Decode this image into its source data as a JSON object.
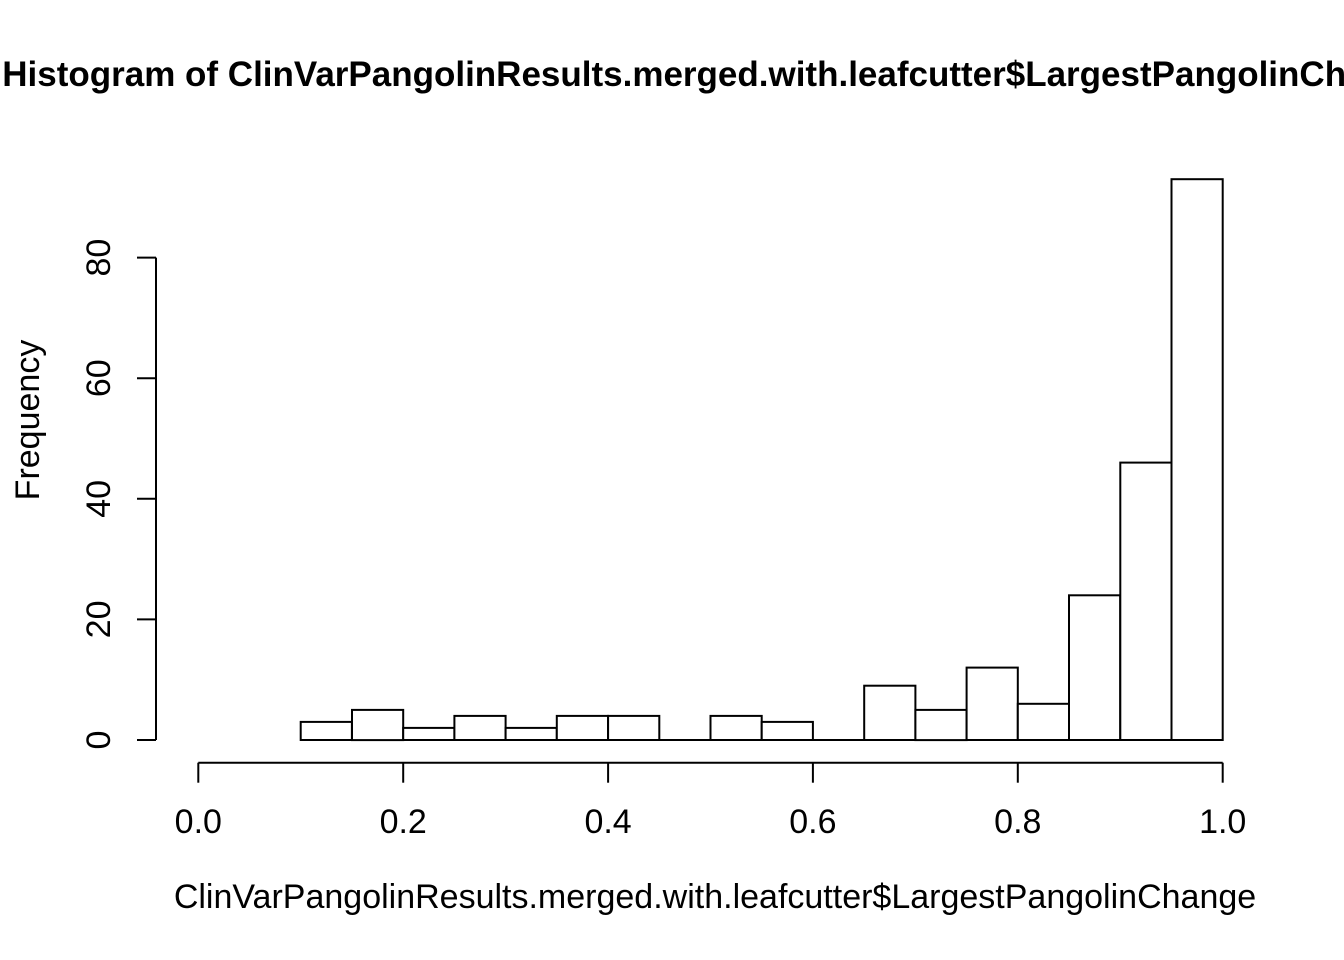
{
  "title": "Histogram of ClinVarPangolinResults.merged.with.leafcutter$LargestPangolinChange",
  "colors": {
    "background": "#ffffff",
    "text": "#000000",
    "bar_fill": "#ffffff",
    "bar_border": "#000000",
    "axis": "#000000"
  },
  "chart_data": {
    "type": "bar",
    "subtype": "histogram",
    "title": "Histogram of ClinVarPangolinResults.merged.with.leafcutter$LargestPangolinChange",
    "xlabel": "ClinVarPangolinResults.merged.with.leafcutter$LargestPangolinChange",
    "ylabel": "Frequency",
    "bins": {
      "start": 0.1,
      "width": 0.05,
      "counts": [
        3,
        5,
        2,
        4,
        2,
        4,
        4,
        0,
        4,
        3,
        0,
        9,
        5,
        12,
        6,
        24,
        46,
        93
      ]
    },
    "bin_edges": [
      0.1,
      0.15,
      0.2,
      0.25,
      0.3,
      0.35,
      0.4,
      0.45,
      0.5,
      0.55,
      0.6,
      0.65,
      0.7,
      0.75,
      0.8,
      0.85,
      0.9,
      0.95,
      1.0
    ],
    "x_ticks": {
      "values": [
        0.0,
        0.2,
        0.4,
        0.6,
        0.8,
        1.0
      ],
      "labels": [
        "0.0",
        "0.2",
        "0.4",
        "0.6",
        "0.8",
        "1.0"
      ]
    },
    "y_ticks": {
      "values": [
        0,
        20,
        40,
        60,
        80
      ],
      "labels": [
        "0",
        "20",
        "40",
        "60",
        "80"
      ]
    },
    "xlim": [
      0.0,
      1.0
    ],
    "ylim": [
      0,
      93
    ],
    "grid": false,
    "legend": false
  }
}
